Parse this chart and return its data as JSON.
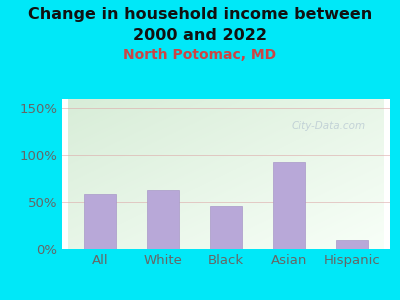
{
  "title_line1": "Change in household income between",
  "title_line2": "2000 and 2022",
  "subtitle": "North Potomac, MD",
  "categories": [
    "All",
    "White",
    "Black",
    "Asian",
    "Hispanic"
  ],
  "values": [
    59,
    63,
    46,
    93,
    10
  ],
  "bar_color": "#b8a8d8",
  "bar_edge_color": "#a898c8",
  "background_outer": "#00e8f8",
  "background_inner_topleft": "#d8edd8",
  "background_inner_bottomright": "#f8fff8",
  "grid_color": "#ddaaaa",
  "title_color": "#111111",
  "subtitle_color": "#cc4444",
  "tick_label_color": "#666666",
  "watermark_color": "#aabbcc",
  "ylim": [
    0,
    160
  ],
  "yticks": [
    0,
    50,
    100,
    150
  ],
  "ytick_labels": [
    "0%",
    "50%",
    "100%",
    "150%"
  ],
  "title_fontsize": 11.5,
  "subtitle_fontsize": 10,
  "tick_fontsize": 9.5,
  "bar_width": 0.5
}
